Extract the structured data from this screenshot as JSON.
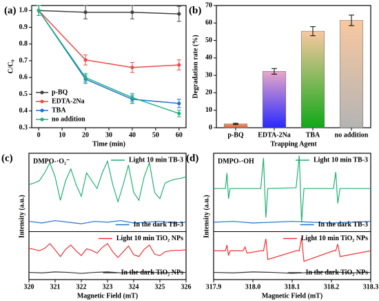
{
  "chart_data": [
    {
      "type": "line",
      "label": "(a)",
      "xlabel": "Time (min)",
      "ylabel": "C/C₀",
      "x": [
        0,
        20,
        40,
        60
      ],
      "xlim": [
        -3,
        63
      ],
      "xticks": [
        0,
        10,
        20,
        30,
        40,
        50,
        60
      ],
      "ylim": [
        0.3,
        1.03
      ],
      "yticks": [
        0.3,
        0.4,
        0.5,
        0.6,
        0.7,
        0.8,
        0.9,
        {
          "value": 1,
          "label": "1.0"
        }
      ],
      "legend": "lower left",
      "series": [
        {
          "name": "p-BQ",
          "color": "#404040",
          "values": [
            1.0,
            0.99,
            0.99,
            0.98
          ],
          "errors": [
            0.03,
            0.04,
            0.04,
            0.045
          ]
        },
        {
          "name": "EDTA-2Na",
          "color": "#f04848",
          "values": [
            1.0,
            0.705,
            0.66,
            0.675
          ],
          "errors": [
            0.03,
            0.03,
            0.03,
            0.03
          ]
        },
        {
          "name": "TBA",
          "color": "#2070d0",
          "values": [
            1.0,
            0.59,
            0.47,
            0.445
          ],
          "errors": [
            0.03,
            0.025,
            0.025,
            0.025
          ]
        },
        {
          "name": "no addition",
          "color": "#20b080",
          "values": [
            1.0,
            0.6,
            0.48,
            0.385
          ],
          "errors": [
            0.03,
            0.025,
            0.025,
            0.02
          ]
        }
      ]
    },
    {
      "type": "bar",
      "label": "(b)",
      "xlabel": "Trapping Agent",
      "ylabel": "Degradation rate (%)",
      "categories": [
        "p-BQ",
        "EDTA-2Na",
        "TBA",
        "no addition"
      ],
      "values": [
        2.2,
        32.3,
        55.3,
        61.5
      ],
      "errors": [
        0.4,
        1.6,
        2.6,
        3.0
      ],
      "colors": [
        [
          "#f4a070",
          "#e05a30"
        ],
        [
          "#e8a8c8",
          "#2828ff"
        ],
        [
          "#f8c8a0",
          "#10a818"
        ],
        [
          "#f8c8a0",
          "#b4b4b4"
        ]
      ],
      "ylim": [
        0,
        70
      ],
      "yticks": [
        0,
        10,
        20,
        30,
        40,
        50,
        60,
        70
      ]
    },
    {
      "type": "line",
      "label": "(c)",
      "annotation": "DMPO-·O₂⁻",
      "xlabel": "Magnetic Field (mT)",
      "ylabel": "Intensity (a.u.)",
      "xlim": [
        320,
        326
      ],
      "xticks": [
        320,
        321,
        322,
        323,
        324,
        325,
        326
      ],
      "subplots": [
        {
          "ylim": [
            0,
            10
          ],
          "series": [
            {
              "name": "Light 10 min TB-3",
              "color": "#20b070",
              "x": [
                320,
                320.2,
                320.4,
                320.6,
                320.8,
                321,
                321.2,
                321.4,
                321.6,
                321.8,
                322,
                322.2,
                322.4,
                322.6,
                322.8,
                323,
                323.2,
                323.4,
                323.6,
                323.8,
                324,
                324.2,
                324.4,
                324.6,
                324.8,
                325,
                325.2,
                325.4,
                325.6,
                325.8,
                326
              ],
              "values": [
                6,
                6.2,
                6.5,
                7.5,
                8.8,
                7,
                4,
                6.5,
                8,
                6,
                4.5,
                7.5,
                6.5,
                5.5,
                7.5,
                9,
                6,
                3.8,
                6,
                8.5,
                5,
                4,
                7,
                8.8,
                5,
                4.2,
                6.2,
                6.5,
                6.7,
                6.8,
                7
              ]
            },
            {
              "name": "In the dark TB-3",
              "color": "#2070d0",
              "x": [
                320,
                320.5,
                321,
                321.5,
                322,
                322.5,
                323,
                323.5,
                324,
                324.5,
                325,
                325.5,
                326
              ],
              "values": [
                1.3,
                1.1,
                1.4,
                1.2,
                1.0,
                1.3,
                1.2,
                1.4,
                1.1,
                1.2,
                1.3,
                1.1,
                1.2
              ]
            }
          ]
        },
        {
          "ylim": [
            0,
            10
          ],
          "series": [
            {
              "name": "Light 10 min TiO₂ NPs",
              "color": "#f03030",
              "x": [
                320,
                320.2,
                320.4,
                320.6,
                320.8,
                321,
                321.2,
                321.4,
                321.6,
                321.8,
                322,
                322.2,
                322.4,
                322.6,
                322.8,
                323,
                323.2,
                323.4,
                323.6,
                323.8,
                324,
                324.2,
                324.4,
                324.6,
                324.8,
                325,
                325.2,
                325.4,
                325.6,
                325.8,
                326
              ],
              "values": [
                6.5,
                6.3,
                6,
                6.5,
                7.5,
                6.2,
                4.8,
                6.3,
                7.2,
                6,
                5,
                6.4,
                6.1,
                5.5,
                6.7,
                7.5,
                5.8,
                4.6,
                5.8,
                7,
                5.2,
                4.8,
                6.3,
                7.2,
                5.3,
                5,
                5.8,
                6,
                6.1,
                6.1,
                6.2
              ]
            },
            {
              "name": "In the dark TiO₂ NPs",
              "color": "#303030",
              "x": [
                320,
                320.5,
                321,
                321.5,
                322,
                322.5,
                323,
                323.5,
                324,
                324.5,
                325,
                325.5,
                326
              ],
              "values": [
                1.5,
                1.4,
                1.6,
                1.5,
                1.3,
                1.5,
                1.6,
                1.4,
                1.5,
                1.6,
                1.4,
                1.5,
                1.5
              ]
            }
          ]
        }
      ]
    },
    {
      "type": "line",
      "label": "(d)",
      "annotation": "DMPO-·OH",
      "xlabel": "Magnetic Field (mT)",
      "ylabel": "Intensity (a.u.)",
      "xlim": [
        317.9,
        318.3
      ],
      "xticks": [
        317.9,
        {
          "value": 318,
          "label": "318.0"
        },
        318.1,
        318.2,
        318.3
      ],
      "subplots": [
        {
          "ylim": [
            0,
            10
          ],
          "series": [
            {
              "name": "Light 10 min TB-3",
              "color": "#20b070",
              "x": [
                317.9,
                317.93,
                317.934,
                317.938,
                317.942,
                318.02,
                318.027,
                318.033,
                318.038,
                318.11,
                318.118,
                318.124,
                318.13,
                318.205,
                318.211,
                318.216,
                318.222,
                318.3
              ],
              "values": [
                5.5,
                5.5,
                7.5,
                4.2,
                5.5,
                5.5,
                9.4,
                1.8,
                5.5,
                5.6,
                9.7,
                1.2,
                5.5,
                5.5,
                7.6,
                3.6,
                5.5,
                5.5
              ]
            },
            {
              "name": "In the dark TB-3",
              "color": "#2070d0",
              "x": [
                317.9,
                317.95,
                318,
                318.05,
                318.1,
                318.15,
                318.2,
                318.25,
                318.3
              ],
              "values": [
                1.2,
                1.3,
                1.1,
                1.2,
                1.3,
                1.2,
                1.1,
                1.2,
                1.3
              ]
            }
          ]
        },
        {
          "ylim": [
            0,
            10
          ],
          "series": [
            {
              "name": "Light 10 min TiO₂ NPs",
              "color": "#f03030",
              "x": [
                317.9,
                317.93,
                317.934,
                317.938,
                317.942,
                317.975,
                317.98,
                317.985,
                318.02,
                318.027,
                318.033,
                318.038,
                318.11,
                318.118,
                318.124,
                318.13,
                318.205,
                318.211,
                318.216,
                318.222,
                318.3
              ],
              "values": [
                6,
                6,
                7.2,
                5,
                6,
                6,
                6.8,
                5.5,
                6,
                6,
                8.5,
                4.2,
                6,
                6,
                8.8,
                3.8,
                6,
                6,
                7.4,
                4.8,
                6
              ]
            },
            {
              "name": "In the dark TiO₂ NPs",
              "color": "#303030",
              "x": [
                317.9,
                317.95,
                318,
                318.05,
                318.1,
                318.15,
                318.2,
                318.25,
                318.3
              ],
              "values": [
                1.5,
                1.4,
                1.6,
                1.5,
                1.3,
                1.5,
                1.6,
                1.4,
                1.5
              ]
            }
          ]
        }
      ]
    }
  ]
}
